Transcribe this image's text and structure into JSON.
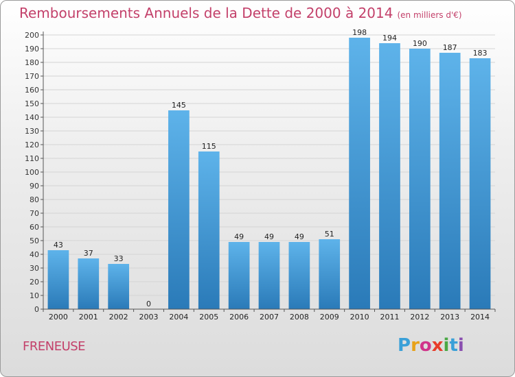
{
  "commune": "FRENEUSE",
  "logo": {
    "letters": [
      "P",
      "r",
      "o",
      "x",
      "i",
      "t",
      "i"
    ],
    "colors": [
      "#3aa0d8",
      "#e8a21a",
      "#d0348a",
      "#e83c2a",
      "#4aa845",
      "#3aa0d8",
      "#8a4fb0"
    ]
  },
  "colors": {
    "bar_top": "#5eb3ea",
    "bar_bottom": "#2a7ab8",
    "title": "#c3406a"
  },
  "chart_data": {
    "type": "bar",
    "title": "Remboursements Annuels de la Dette de 2000 à 2014",
    "subtitle": "(en milliers d'€)",
    "xlabel": "",
    "ylabel": "",
    "ylim": [
      0,
      200
    ],
    "ytick_step": 10,
    "grid": true,
    "categories": [
      "2000",
      "2001",
      "2002",
      "2003",
      "2004",
      "2005",
      "2006",
      "2007",
      "2008",
      "2009",
      "2010",
      "2011",
      "2012",
      "2013",
      "2014"
    ],
    "values": [
      43,
      37,
      33,
      0,
      145,
      115,
      49,
      49,
      49,
      51,
      198,
      194,
      190,
      187,
      183
    ]
  }
}
